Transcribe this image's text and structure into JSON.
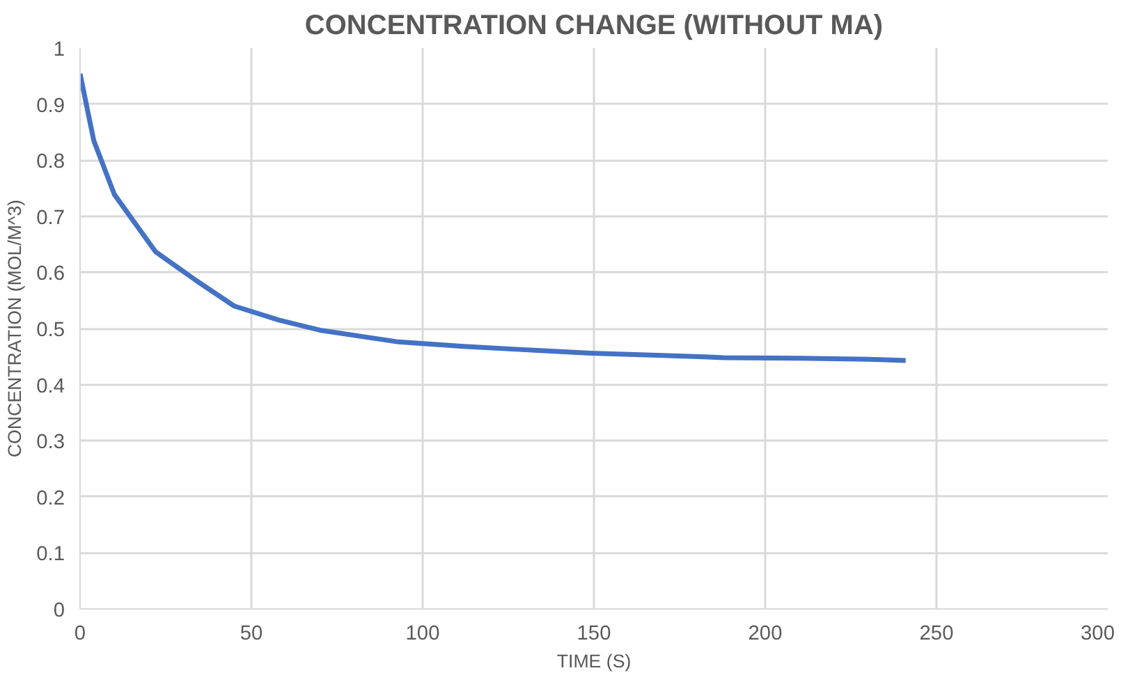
{
  "chart_data": {
    "type": "line",
    "title": "CONCENTRATION CHANGE (WITHOUT MA)",
    "xlabel": "TIME (S)",
    "ylabel": "CONCENTRATION (MOL/M^3)",
    "x": [
      0,
      4,
      10,
      22,
      34,
      45,
      58,
      70,
      93,
      112,
      130,
      149,
      170,
      188,
      210,
      230,
      241
    ],
    "series": [
      {
        "color": "#4472c4",
        "values": [
          0.954,
          0.835,
          0.739,
          0.637,
          0.585,
          0.54,
          0.515,
          0.497,
          0.476,
          0.468,
          0.462,
          0.456,
          0.452,
          0.448,
          0.447,
          0.445,
          0.443
        ]
      }
    ],
    "xlim": [
      0,
      300
    ],
    "xticks": [
      0,
      50,
      100,
      150,
      200,
      250,
      300
    ],
    "ylim": [
      0,
      1
    ],
    "yticks": [
      0,
      0.1,
      0.2,
      0.3,
      0.4,
      0.5,
      0.6,
      0.7,
      0.8,
      0.9,
      1
    ],
    "grid": true,
    "marker": "none",
    "line_style": "solid"
  }
}
